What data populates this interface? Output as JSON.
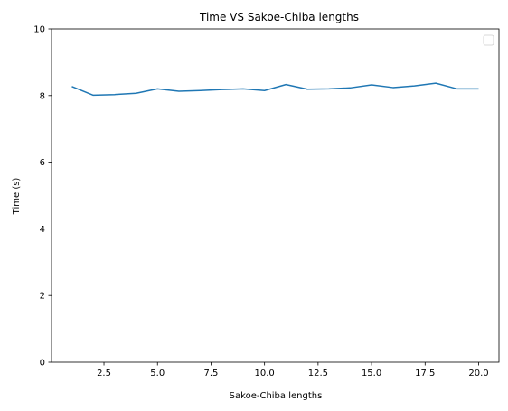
{
  "chart_data": {
    "type": "line",
    "title": "Time VS Sakoe-Chiba lengths",
    "xlabel": "Sakoe-Chiba lengths",
    "ylabel": "Time (s)",
    "xlim": [
      0.05,
      20.95
    ],
    "ylim": [
      0,
      10
    ],
    "xticks": [
      2.5,
      5.0,
      7.5,
      10.0,
      12.5,
      15.0,
      17.5,
      20.0
    ],
    "xtick_labels": [
      "2.5",
      "5.0",
      "7.5",
      "10.0",
      "12.5",
      "15.0",
      "17.5",
      "20.0"
    ],
    "yticks": [
      0,
      2,
      4,
      6,
      8,
      10
    ],
    "ytick_labels": [
      "0",
      "2",
      "4",
      "6",
      "8",
      "10"
    ],
    "grid": false,
    "legend": {
      "placement": "upper right",
      "entries": []
    },
    "series": [
      {
        "color": "#1f77b4",
        "x": [
          1,
          2,
          3,
          4,
          5,
          6,
          7,
          8,
          9,
          10,
          11,
          12,
          13,
          14,
          15,
          16,
          17,
          18,
          19,
          20
        ],
        "y": [
          8.27,
          8.01,
          8.03,
          8.07,
          8.2,
          8.13,
          8.15,
          8.18,
          8.2,
          8.15,
          8.33,
          8.19,
          8.2,
          8.23,
          8.32,
          8.24,
          8.29,
          8.37,
          8.2,
          8.2
        ]
      }
    ]
  }
}
